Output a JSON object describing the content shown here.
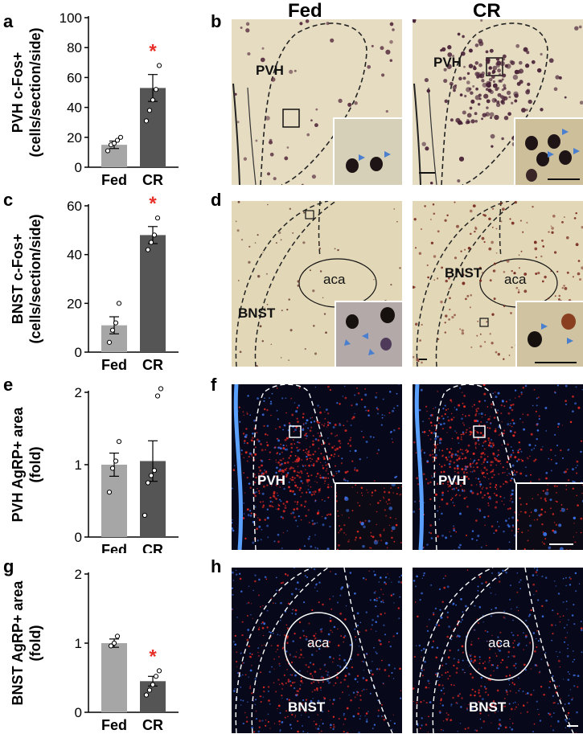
{
  "panel_labels": [
    "a",
    "b",
    "c",
    "d",
    "e",
    "f",
    "g",
    "h"
  ],
  "column_titles": [
    "Fed",
    "CR"
  ],
  "image_labels": {
    "b": [
      "PVH",
      "PVH"
    ],
    "d_region": [
      "BNST",
      "BNST"
    ],
    "d_tract": [
      "aca",
      "aca"
    ],
    "f": [
      "PVH",
      "PVH"
    ],
    "h_region": [
      "BNST",
      "BNST"
    ],
    "h_tract": [
      "aca",
      "aca"
    ]
  },
  "colors": {
    "fed_bar": "#a6a6a6",
    "cr_bar": "#555555",
    "significance": "#e8302a",
    "brightfield_bg": "#e6dcc2",
    "cell_stain": "#5a3040",
    "fluor_bg": "#07081a",
    "agrp_red": "#e02a24",
    "dapi_blue": "#3a6ee0",
    "arrowhead": "#4a7fd0"
  },
  "chart_data": [
    {
      "type": "bar",
      "panel": "a",
      "categories": [
        "Fed",
        "CR"
      ],
      "values": [
        15,
        53
      ],
      "errors": [
        2.5,
        9
      ],
      "points": [
        [
          11,
          15,
          16,
          18,
          20
        ],
        [
          31,
          38,
          45,
          52,
          68
        ]
      ],
      "significance": [
        "",
        "*"
      ],
      "ylabel": [
        "PVH c-Fos+",
        "(cells/section/side)"
      ],
      "ylim": [
        0,
        100
      ],
      "yticks": [
        0,
        20,
        40,
        60,
        80,
        100
      ]
    },
    {
      "type": "bar",
      "panel": "c",
      "categories": [
        "Fed",
        "CR"
      ],
      "values": [
        11,
        48
      ],
      "errors": [
        3.5,
        3.5
      ],
      "points": [
        [
          4,
          9,
          12,
          20
        ],
        [
          42,
          45,
          48,
          55
        ]
      ],
      "significance": [
        "",
        "*"
      ],
      "ylabel": [
        "BNST c-Fos+",
        "(cells/section/side)"
      ],
      "ylim": [
        0,
        60
      ],
      "yticks": [
        0,
        20,
        40,
        60
      ]
    },
    {
      "type": "bar",
      "panel": "e",
      "categories": [
        "Fed",
        "CR"
      ],
      "values": [
        1.0,
        1.05
      ],
      "errors": [
        0.16,
        0.28
      ],
      "points": [
        [
          0.62,
          0.95,
          1.05,
          1.32
        ],
        [
          0.3,
          0.75,
          0.85,
          0.92,
          1.95,
          2.05
        ]
      ],
      "significance": [
        "",
        ""
      ],
      "ylabel": [
        "PVH AgRP+ area",
        "(fold)"
      ],
      "ylim": [
        0,
        2
      ],
      "yticks": [
        0,
        1,
        2
      ]
    },
    {
      "type": "bar",
      "panel": "g",
      "categories": [
        "Fed",
        "CR"
      ],
      "values": [
        1.0,
        0.45
      ],
      "errors": [
        0.06,
        0.07
      ],
      "points": [
        [
          0.96,
          1.0,
          1.1
        ],
        [
          0.25,
          0.32,
          0.4,
          0.52,
          0.6
        ]
      ],
      "significance": [
        "",
        "*"
      ],
      "ylabel": [
        "BNST AgRP+ area",
        "(fold)"
      ],
      "ylim": [
        0,
        2
      ],
      "yticks": [
        0,
        1,
        2
      ]
    }
  ]
}
